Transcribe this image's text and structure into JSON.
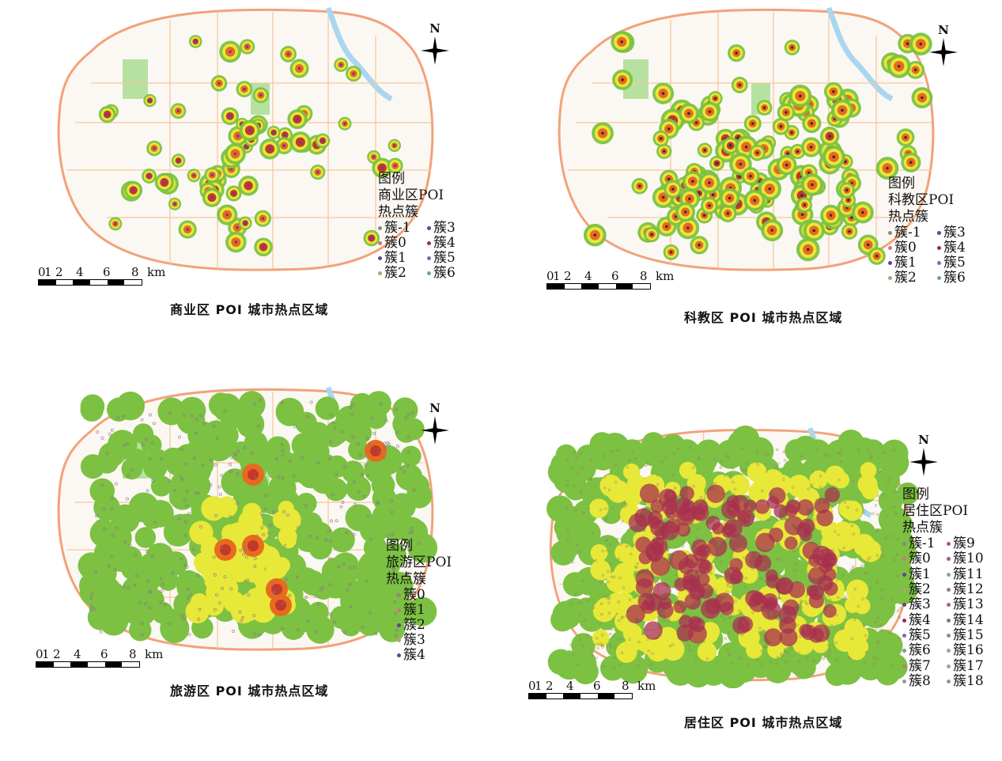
{
  "north_label": "N",
  "scale": {
    "ticks": [
      "0",
      "1",
      "2",
      "4",
      "6",
      "8"
    ],
    "unit": "km"
  },
  "panels": [
    {
      "id": "commercial",
      "caption": "商业区 POI 城市热点区域",
      "legend_title": "图例",
      "legend_subtitle1": "商业区POI",
      "legend_subtitle2": "热点簇",
      "items": [
        "簇-1",
        "簇0",
        "簇1",
        "簇2",
        "簇3",
        "簇4",
        "簇5",
        "簇6"
      ]
    },
    {
      "id": "education",
      "caption": "科教区 POI 城市热点区域",
      "legend_title": "图例",
      "legend_subtitle1": "科教区POI",
      "legend_subtitle2": "热点簇",
      "items": [
        "簇-1",
        "簇0",
        "簇1",
        "簇2",
        "簇3",
        "簇4",
        "簇5",
        "簇6"
      ]
    },
    {
      "id": "tourism",
      "caption": "旅游区 POI 城市热点区域",
      "legend_title": "图例",
      "legend_subtitle1": "旅游区POI",
      "legend_subtitle2": "热点簇",
      "items": [
        "簇0",
        "簇1",
        "簇2",
        "簇3",
        "簇4"
      ]
    },
    {
      "id": "residential",
      "caption": "居住区 POI 城市热点区域",
      "legend_title": "图例",
      "legend_subtitle1": "居住区POI",
      "legend_subtitle2": "热点簇",
      "items": [
        "簇-1",
        "簇0",
        "簇1",
        "簇2",
        "簇3",
        "簇4",
        "簇5",
        "簇6",
        "簇7",
        "簇8",
        "簇9",
        "簇10",
        "簇11",
        "簇12",
        "簇13",
        "簇14",
        "簇15",
        "簇16",
        "簇17",
        "簇18"
      ]
    }
  ],
  "colors": {
    "background": "#ffffff",
    "ring_road": "#f2a27a",
    "road": "#f6c89a",
    "river": "#a9d7f2",
    "park": "#b7e1a1",
    "heat_low": "#7cc142",
    "heat_mid": "#e8e838",
    "heat_high": "#e86a1f",
    "heat_core": "#c0392b",
    "dense": "#a8304f"
  }
}
